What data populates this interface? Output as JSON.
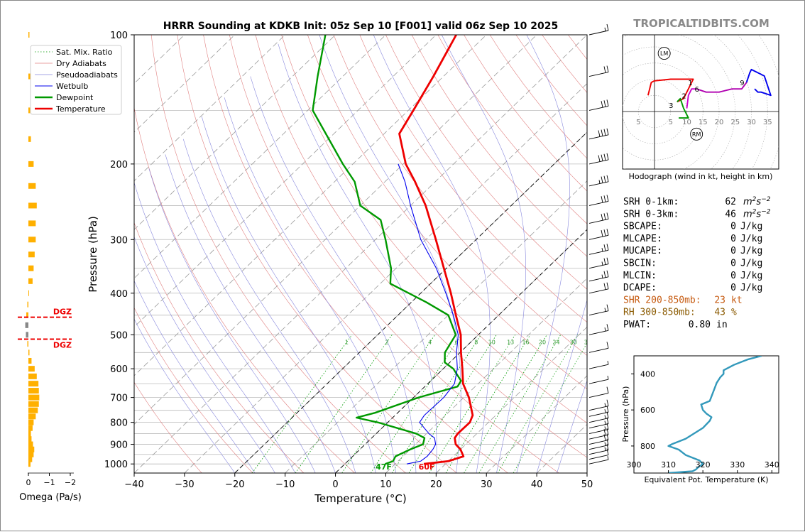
{
  "title": "HRRR Sounding at KDKB Init: 05z Sep 10 [F001] valid 06z Sep 10 2025",
  "watermark": "TROPICALTIDBITS.COM",
  "colors": {
    "temperature": "#ee0000",
    "dewpoint": "#009900",
    "wetbulb": "#0000ee",
    "omega": "#ffb000",
    "watermark": "#8a8a8a",
    "dgz": "#ee0000",
    "shr": "#c65a10",
    "rh": "#8a5a00",
    "theta_e": "#3399bb",
    "hodo_0_1": "#ee0000",
    "hodo_1_3": "#009900",
    "hodo_3_6": "#cc00cc",
    "hodo_6_9": "#b000b0",
    "hodo_9_12": "#0000ee"
  },
  "chart_data": [
    {
      "id": "skewt",
      "type": "line",
      "title": "HRRR Sounding at KDKB Init: 05z Sep 10 [F001] valid 06z Sep 10 2025",
      "xlabel": "Temperature (°C)",
      "ylabel": "Pressure (hPa)",
      "xlim": [
        -40,
        50
      ],
      "ylim": [
        1050,
        100
      ],
      "yscale": "log",
      "skew": true,
      "x_ticks": [
        "−40",
        "−30",
        "−20",
        "−10",
        "0",
        "10",
        "20",
        "30",
        "40",
        "50"
      ],
      "y_ticks": [
        "100",
        "200",
        "300",
        "400",
        "500",
        "600",
        "700",
        "800",
        "900",
        "1000"
      ],
      "mix_ratio_labels": [
        "1",
        "2",
        "4",
        "6",
        "8",
        "10",
        "13",
        "16",
        "20",
        "24",
        "30",
        "36"
      ],
      "legend": {
        "placement": "top-left",
        "entries": [
          "Sat. Mix. Ratio",
          "Dry Adiabats",
          "Pseudoadiabats",
          "Wetbulb",
          "Dewpoint",
          "Temperature"
        ]
      },
      "surface_labels": {
        "dewpoint": "47F",
        "temperature": "60F"
      },
      "series": [
        {
          "name": "Temperature",
          "points": [
            [
              1000,
              15.7
            ],
            [
              985,
              20.0
            ],
            [
              960,
              22.0
            ],
            [
              925,
              20.0
            ],
            [
              900,
              18.0
            ],
            [
              870,
              16.5
            ],
            [
              850,
              16.2
            ],
            [
              800,
              16.3
            ],
            [
              770,
              15.4
            ],
            [
              700,
              11.0
            ],
            [
              650,
              7.0
            ],
            [
              600,
              3.8
            ],
            [
              550,
              0.2
            ],
            [
              500,
              -3.5
            ],
            [
              450,
              -8.5
            ],
            [
              400,
              -14.0
            ],
            [
              350,
              -20.5
            ],
            [
              300,
              -28.0
            ],
            [
              250,
              -37.0
            ],
            [
              220,
              -44.0
            ],
            [
              200,
              -49.5
            ],
            [
              170,
              -57.0
            ],
            [
              150,
              -59.0
            ],
            [
              125,
              -62.0
            ],
            [
              100,
              -66.0
            ]
          ]
        },
        {
          "name": "Dewpoint",
          "points": [
            [
              1000,
              8.0
            ],
            [
              985,
              9.0
            ],
            [
              960,
              8.5
            ],
            [
              925,
              10.0
            ],
            [
              900,
              11.5
            ],
            [
              870,
              10.5
            ],
            [
              850,
              8.0
            ],
            [
              800,
              -2.0
            ],
            [
              780,
              -7.2
            ],
            [
              760,
              -4.5
            ],
            [
              700,
              1.0
            ],
            [
              660,
              6.5
            ],
            [
              640,
              6.0
            ],
            [
              600,
              2.0
            ],
            [
              580,
              -1.0
            ],
            [
              550,
              -3.0
            ],
            [
              500,
              -4.5
            ],
            [
              450,
              -10.0
            ],
            [
              420,
              -17.0
            ],
            [
              380,
              -28.0
            ],
            [
              350,
              -31.0
            ],
            [
              300,
              -38.0
            ],
            [
              270,
              -43.0
            ],
            [
              250,
              -50.0
            ],
            [
              220,
              -56.0
            ],
            [
              200,
              -62.0
            ],
            [
              150,
              -79.0
            ],
            [
              125,
              -85.0
            ],
            [
              100,
              -92.0
            ]
          ]
        },
        {
          "name": "Wetbulb",
          "points": [
            [
              1000,
              12.3
            ],
            [
              985,
              14.5
            ],
            [
              960,
              14.8
            ],
            [
              925,
              14.5
            ],
            [
              900,
              14.0
            ],
            [
              870,
              12.5
            ],
            [
              850,
              10.5
            ],
            [
              800,
              6.3
            ],
            [
              770,
              5.8
            ],
            [
              700,
              6.0
            ],
            [
              650,
              5.3
            ],
            [
              600,
              2.8
            ],
            [
              550,
              -0.7
            ],
            [
              500,
              -4.0
            ],
            [
              450,
              -9.0
            ],
            [
              400,
              -15.0
            ],
            [
              350,
              -22.0
            ],
            [
              300,
              -31.0
            ],
            [
              250,
              -40.0
            ],
            [
              220,
              -46.0
            ],
            [
              200,
              -51.0
            ]
          ]
        }
      ],
      "wind_barbs_kt": [
        {
          "p": 1000,
          "spd": 5
        },
        {
          "p": 975,
          "spd": 10
        },
        {
          "p": 950,
          "spd": 15
        },
        {
          "p": 925,
          "spd": 15
        },
        {
          "p": 900,
          "spd": 20
        },
        {
          "p": 875,
          "spd": 20
        },
        {
          "p": 850,
          "spd": 15
        },
        {
          "p": 825,
          "spd": 15
        },
        {
          "p": 800,
          "spd": 15
        },
        {
          "p": 775,
          "spd": 15
        },
        {
          "p": 750,
          "spd": 15
        },
        {
          "p": 700,
          "spd": 10
        },
        {
          "p": 650,
          "spd": 5
        },
        {
          "p": 600,
          "spd": 5
        },
        {
          "p": 550,
          "spd": 10
        },
        {
          "p": 500,
          "spd": 15
        },
        {
          "p": 450,
          "spd": 15
        },
        {
          "p": 400,
          "spd": 20
        },
        {
          "p": 375,
          "spd": 25
        },
        {
          "p": 350,
          "spd": 25
        },
        {
          "p": 325,
          "spd": 25
        },
        {
          "p": 300,
          "spd": 30
        },
        {
          "p": 275,
          "spd": 30
        },
        {
          "p": 250,
          "spd": 30
        },
        {
          "p": 225,
          "spd": 35
        },
        {
          "p": 200,
          "spd": 40
        },
        {
          "p": 175,
          "spd": 40
        },
        {
          "p": 150,
          "spd": 30
        },
        {
          "p": 125,
          "spd": 20
        },
        {
          "p": 100,
          "spd": 15
        }
      ]
    },
    {
      "id": "omega",
      "type": "bar",
      "xlabel": "Omega (Pa/s)",
      "x_ticks": [
        "0",
        "−1",
        "−2"
      ],
      "xlim": [
        0.5,
        -2.2
      ],
      "dgz_label": "DGZ",
      "dgz_bounds_hPa": [
        455,
        512
      ],
      "bars": [
        {
          "p": 1000,
          "v": -0.1
        },
        {
          "p": 975,
          "v": -0.18
        },
        {
          "p": 950,
          "v": -0.25
        },
        {
          "p": 925,
          "v": -0.28
        },
        {
          "p": 900,
          "v": -0.22
        },
        {
          "p": 875,
          "v": -0.15
        },
        {
          "p": 850,
          "v": -0.12
        },
        {
          "p": 825,
          "v": -0.2
        },
        {
          "p": 800,
          "v": -0.25
        },
        {
          "p": 775,
          "v": -0.35
        },
        {
          "p": 750,
          "v": -0.45
        },
        {
          "p": 725,
          "v": -0.5
        },
        {
          "p": 700,
          "v": -0.52
        },
        {
          "p": 675,
          "v": -0.5
        },
        {
          "p": 650,
          "v": -0.48
        },
        {
          "p": 625,
          "v": -0.4
        },
        {
          "p": 600,
          "v": -0.3
        },
        {
          "p": 575,
          "v": -0.15
        },
        {
          "p": 550,
          "v": -0.05
        },
        {
          "p": 525,
          "v": 0.05
        },
        {
          "p": 500,
          "v": 0.12
        },
        {
          "p": 475,
          "v": 0.15
        },
        {
          "p": 450,
          "v": 0.1
        },
        {
          "p": 425,
          "v": 0.05
        },
        {
          "p": 400,
          "v": -0.03
        },
        {
          "p": 375,
          "v": -0.2
        },
        {
          "p": 350,
          "v": -0.25
        },
        {
          "p": 325,
          "v": -0.3
        },
        {
          "p": 300,
          "v": -0.35
        },
        {
          "p": 275,
          "v": -0.35
        },
        {
          "p": 250,
          "v": -0.4
        },
        {
          "p": 225,
          "v": -0.35
        },
        {
          "p": 200,
          "v": -0.25
        },
        {
          "p": 175,
          "v": -0.12
        },
        {
          "p": 150,
          "v": -0.08
        },
        {
          "p": 125,
          "v": -0.1
        },
        {
          "p": 100,
          "v": -0.05
        }
      ]
    },
    {
      "id": "hodograph",
      "type": "line",
      "xlabel": "Hodograph (wind in kt, height in km)",
      "ring_labels": [
        "5",
        "5",
        "10",
        "15",
        "20",
        "25",
        "30",
        "35"
      ],
      "markers": [
        "LM",
        "RM"
      ],
      "height_labels": [
        {
          "label": "1",
          "u": 12,
          "v": 9
        },
        {
          "label": "2",
          "u": 10,
          "v": 5
        },
        {
          "label": "3",
          "u": 6,
          "v": 2
        },
        {
          "label": "6",
          "u": 14,
          "v": 7
        },
        {
          "label": "9",
          "u": 28,
          "v": 9
        }
      ],
      "storm_motion": {
        "LM": {
          "u": 3,
          "v": 18
        },
        "RM": {
          "u": 13,
          "v": -7
        }
      },
      "segments": [
        {
          "km": "0-1",
          "color": "hodo_0_1",
          "points": [
            [
              -2,
              5
            ],
            [
              -1,
              9
            ],
            [
              0,
              9.5
            ],
            [
              5,
              10
            ],
            [
              9,
              10
            ],
            [
              11,
              10
            ],
            [
              12,
              10
            ],
            [
              11,
              8
            ],
            [
              10,
              6
            ],
            [
              9,
              4
            ],
            [
              7,
              3
            ]
          ]
        },
        {
          "km": "1-3",
          "color": "hodo_1_3",
          "points": [
            [
              7,
              3
            ],
            [
              8,
              4
            ],
            [
              9,
              1
            ],
            [
              10,
              -1
            ],
            [
              10.5,
              -2
            ],
            [
              9,
              -2
            ],
            [
              7.5,
              -2
            ]
          ]
        },
        {
          "km": "3-6",
          "color": "hodo_3_6",
          "points": [
            [
              10,
              1
            ],
            [
              10.5,
              5
            ],
            [
              11.5,
              7
            ],
            [
              13,
              7
            ]
          ]
        },
        {
          "km": "6-9",
          "color": "hodo_6_9",
          "points": [
            [
              13,
              7
            ],
            [
              16,
              6
            ],
            [
              20,
              6
            ],
            [
              24,
              7
            ],
            [
              27,
              7
            ],
            [
              28.5,
              9
            ]
          ]
        },
        {
          "km": "9-12",
          "color": "hodo_9_12",
          "points": [
            [
              28.5,
              9
            ],
            [
              29.5,
              12
            ],
            [
              30,
              13
            ],
            [
              34,
              11
            ],
            [
              36,
              5
            ],
            [
              33,
              6
            ],
            [
              32,
              6
            ],
            [
              31,
              7
            ]
          ]
        }
      ]
    },
    {
      "id": "theta_e",
      "type": "line",
      "xlabel": "Equivalent Pot. Temperature (K)",
      "ylabel": "Pressure (hPa)",
      "xlim": [
        300,
        342
      ],
      "ylim": [
        950,
        300
      ],
      "x_ticks": [
        "300",
        "310",
        "320",
        "330",
        "340"
      ],
      "y_ticks": [
        "400",
        "600",
        "800"
      ],
      "points": [
        [
          950,
          310
        ],
        [
          940,
          317
        ],
        [
          930,
          318
        ],
        [
          920,
          318.5
        ],
        [
          900,
          320
        ],
        [
          880,
          319
        ],
        [
          850,
          315
        ],
        [
          820,
          313
        ],
        [
          800,
          310
        ],
        [
          790,
          311
        ],
        [
          760,
          315
        ],
        [
          700,
          320
        ],
        [
          660,
          322
        ],
        [
          640,
          322.5
        ],
        [
          620,
          321
        ],
        [
          600,
          320
        ],
        [
          570,
          319.5
        ],
        [
          550,
          322
        ],
        [
          500,
          323
        ],
        [
          450,
          324
        ],
        [
          420,
          325
        ],
        [
          400,
          326
        ],
        [
          380,
          326
        ],
        [
          350,
          329
        ],
        [
          320,
          333
        ],
        [
          300,
          337
        ]
      ]
    }
  ],
  "stats": [
    {
      "label": "SRH 0-1km:",
      "value": "62",
      "unit": "m2s-2"
    },
    {
      "label": "SRH 0-3km:",
      "value": "46",
      "unit": "m2s-2"
    },
    {
      "label": "SBCAPE:",
      "value": "0",
      "unit": "J/kg"
    },
    {
      "label": "MLCAPE:",
      "value": "0",
      "unit": "J/kg"
    },
    {
      "label": "MUCAPE:",
      "value": "0",
      "unit": "J/kg"
    },
    {
      "label": "SBCIN:",
      "value": "0",
      "unit": "J/kg"
    },
    {
      "label": "MLCIN:",
      "value": "0",
      "unit": "J/kg"
    },
    {
      "label": "DCAPE:",
      "value": "0",
      "unit": "J/kg"
    },
    {
      "label": "SHR 200-850mb:",
      "value": "23",
      "unit": "kt"
    },
    {
      "label": "RH 300-850mb:",
      "value": "43",
      "unit": "%"
    },
    {
      "label": "PWAT:",
      "value": "0.80",
      "unit": "in"
    }
  ]
}
